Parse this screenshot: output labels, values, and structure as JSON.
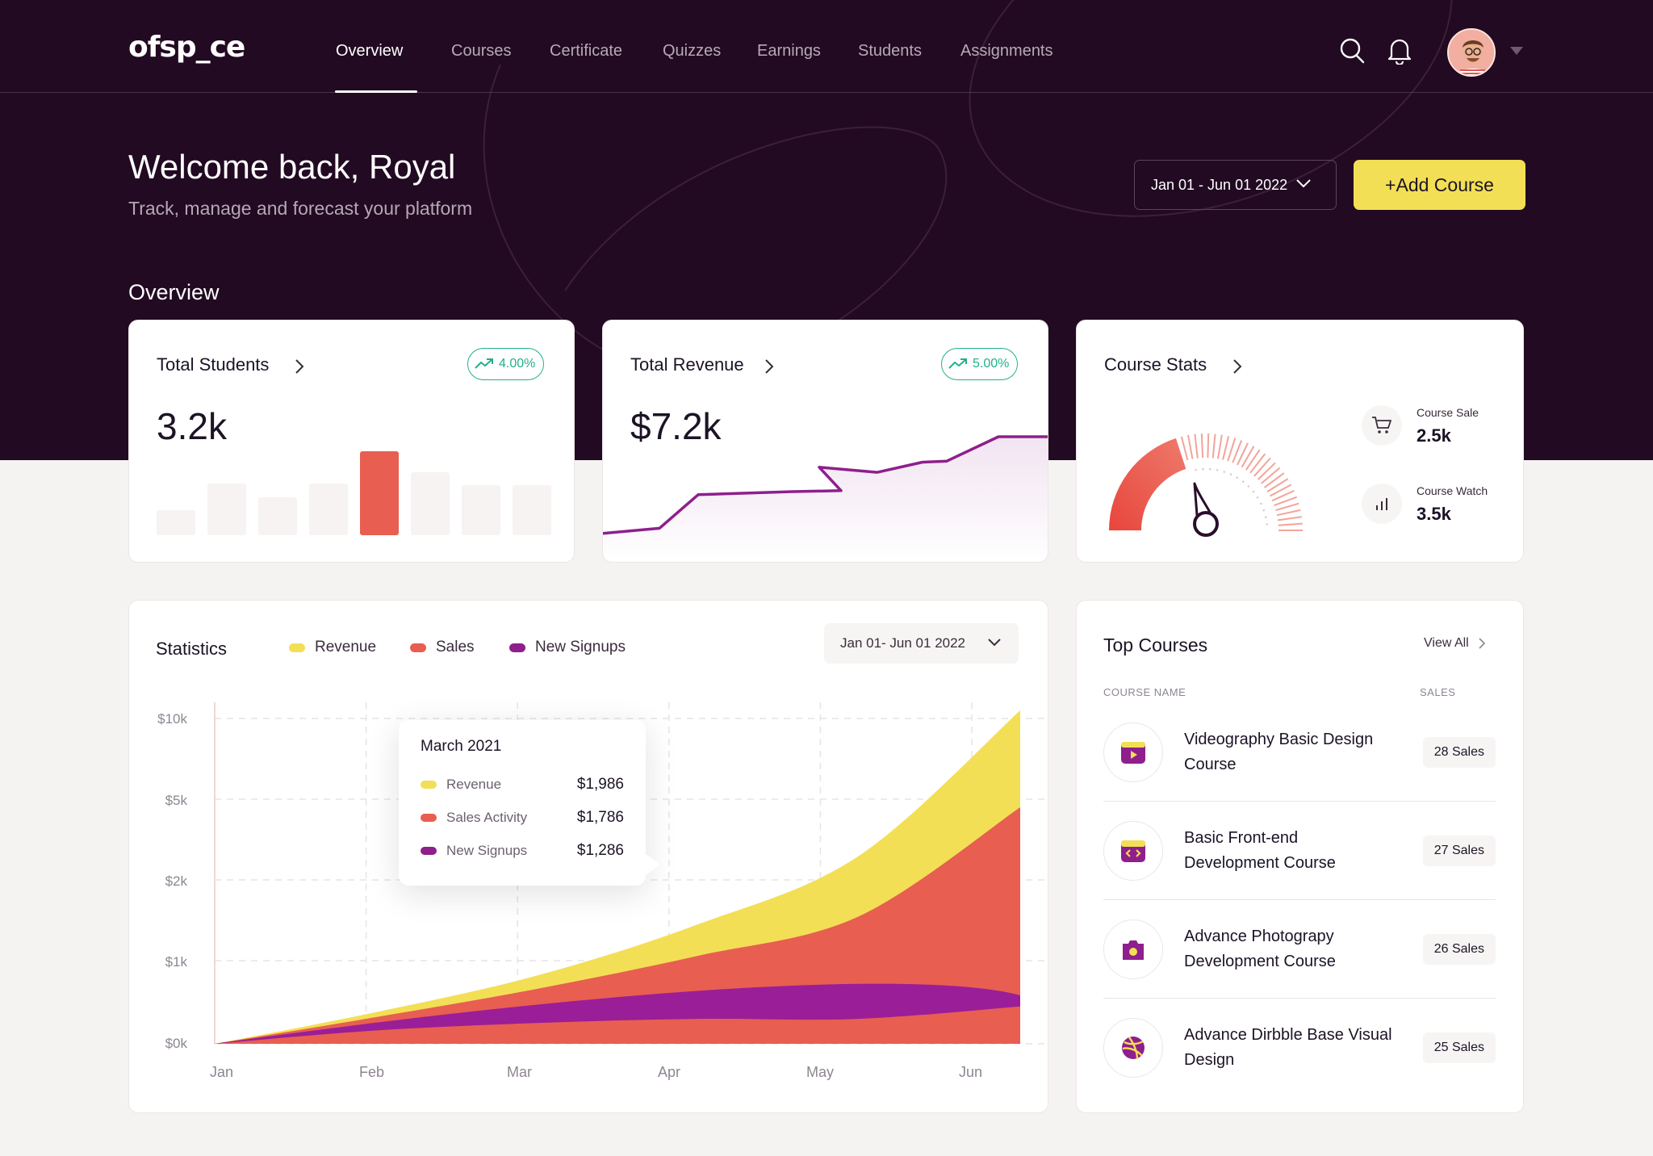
{
  "brand": {
    "logo": "ofsp_ce"
  },
  "nav": {
    "items": [
      {
        "label": "Overview",
        "active": true
      },
      {
        "label": "Courses"
      },
      {
        "label": "Certificate"
      },
      {
        "label": "Quizzes"
      },
      {
        "label": "Earnings"
      },
      {
        "label": "Students"
      },
      {
        "label": "Assignments"
      }
    ],
    "icons": [
      "search-icon",
      "bell-icon",
      "avatar",
      "caret-down-icon"
    ]
  },
  "hero": {
    "welcome": "Welcome back, Royal",
    "subtitle": "Track, manage and forecast your platform",
    "date_range": "Jan 01 - Jun 01 2022",
    "add_button": "+Add Course",
    "section_title": "Overview"
  },
  "colors": {
    "hero_bg": "#220a22",
    "accent_yellow": "#f2df55",
    "accent_red": "#e85e51",
    "accent_purple": "#8e1f8c",
    "positive_green": "#21b08c"
  },
  "cards": {
    "students": {
      "title": "Total Students",
      "change": "4.00%",
      "value": "3.2k",
      "bars": [
        0.3,
        0.62,
        0.45,
        0.62,
        1.0,
        0.75,
        0.6,
        0.6
      ],
      "highlight_index": 4
    },
    "revenue": {
      "title": "Total Revenue",
      "change": "5.00%",
      "value": "$7.2k",
      "trend": [
        0.05,
        0.1,
        0.43,
        0.46,
        0.47,
        0.7,
        0.65,
        0.75,
        0.76,
        1.0,
        1.0
      ]
    },
    "course_stats": {
      "title": "Course Stats",
      "sale_label": "Course Sale",
      "sale_value": "2.5k",
      "watch_label": "Course Watch",
      "watch_value": "3.5k",
      "gauge_fraction": 0.4
    }
  },
  "statistics": {
    "title": "Statistics",
    "legend": [
      {
        "name": "Revenue",
        "color": "#f2df55"
      },
      {
        "name": "Sales",
        "color": "#e85e51"
      },
      {
        "name": "New Signups",
        "color": "#8e1f8c"
      }
    ],
    "date_range": "Jan 01- Jun 01 2022",
    "tooltip": {
      "title": "March 2021",
      "rows": [
        {
          "label": "Revenue",
          "value": "$1,986",
          "color": "#f2df55"
        },
        {
          "label": "Sales Activity",
          "value": "$1,786",
          "color": "#e85e51"
        },
        {
          "label": "New Signups",
          "value": "$1,286",
          "color": "#8e1f8c"
        }
      ]
    }
  },
  "chart_data": {
    "type": "area",
    "title": "Statistics",
    "x": [
      "Jan",
      "Feb",
      "Mar",
      "Apr",
      "May",
      "Jun"
    ],
    "y_ticks": [
      "$10k",
      "$5k",
      "$2k",
      "$1k",
      "$0k"
    ],
    "series": [
      {
        "name": "Revenue",
        "values": [
          0,
          0.38,
          0.82,
          1.45,
          2.3,
          4.1
        ]
      },
      {
        "name": "Sales",
        "values": [
          0,
          0.32,
          0.66,
          1.06,
          1.55,
          2.9
        ]
      },
      {
        "name": "New Signups",
        "values": [
          0,
          0.16,
          0.25,
          0.3,
          0.3,
          0.45
        ]
      }
    ],
    "grid": true
  },
  "top_courses": {
    "title": "Top Courses",
    "view_all": "View All",
    "col_name": "COURSE NAME",
    "col_sales": "SALES",
    "items": [
      {
        "name": "Videography Basic Design Course",
        "sales": "28 Sales",
        "icon": "video-icon"
      },
      {
        "name": "Basic Front-end Development Course",
        "sales": "27 Sales",
        "icon": "code-icon"
      },
      {
        "name": "Advance Photograpy Development Course",
        "sales": "26 Sales",
        "icon": "camera-icon"
      },
      {
        "name": "Advance Dirbble Base Visual Design",
        "sales": "25 Sales",
        "icon": "dribbble-icon"
      }
    ]
  }
}
